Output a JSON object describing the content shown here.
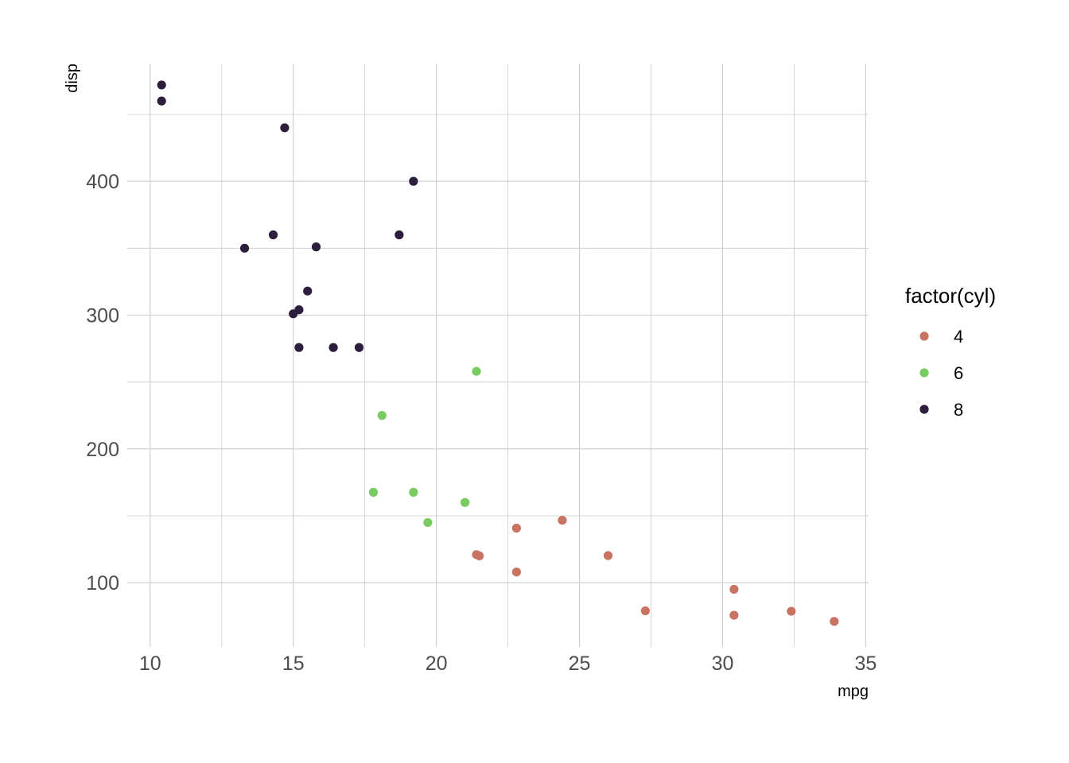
{
  "chart_data": {
    "type": "scatter",
    "title": "",
    "xlabel": "mpg",
    "ylabel": "disp",
    "xlim": [
      9.2,
      35.1
    ],
    "ylim": [
      52,
      488
    ],
    "x_ticks": [
      10,
      15,
      20,
      25,
      30,
      35
    ],
    "x_tick_labels": [
      "10",
      "15",
      "20",
      "25",
      "30",
      "35"
    ],
    "y_ticks": [
      100,
      200,
      300,
      400
    ],
    "y_tick_labels": [
      "100",
      "200",
      "300",
      "400"
    ],
    "grid": true,
    "legend": {
      "title": "factor(cyl)",
      "placement": "right",
      "entries": [
        "4",
        "6",
        "8"
      ]
    },
    "series": [
      {
        "name": "4",
        "color": "#c87462",
        "points": [
          {
            "x": 22.8,
            "y": 108
          },
          {
            "x": 24.4,
            "y": 146.7
          },
          {
            "x": 22.8,
            "y": 140.8
          },
          {
            "x": 32.4,
            "y": 78.7
          },
          {
            "x": 30.4,
            "y": 75.7
          },
          {
            "x": 33.9,
            "y": 71.1
          },
          {
            "x": 21.5,
            "y": 120.1
          },
          {
            "x": 27.3,
            "y": 79
          },
          {
            "x": 26.0,
            "y": 120.3
          },
          {
            "x": 30.4,
            "y": 95.1
          },
          {
            "x": 21.4,
            "y": 121
          }
        ]
      },
      {
        "name": "6",
        "color": "#7acc62",
        "points": [
          {
            "x": 21.0,
            "y": 160
          },
          {
            "x": 21.0,
            "y": 160
          },
          {
            "x": 21.4,
            "y": 258
          },
          {
            "x": 18.1,
            "y": 225
          },
          {
            "x": 19.2,
            "y": 167.6
          },
          {
            "x": 17.8,
            "y": 167.6
          },
          {
            "x": 19.7,
            "y": 145
          }
        ]
      },
      {
        "name": "8",
        "color": "#2d1e3e",
        "points": [
          {
            "x": 18.7,
            "y": 360
          },
          {
            "x": 14.3,
            "y": 360
          },
          {
            "x": 16.4,
            "y": 275.8
          },
          {
            "x": 17.3,
            "y": 275.8
          },
          {
            "x": 15.2,
            "y": 275.8
          },
          {
            "x": 10.4,
            "y": 472
          },
          {
            "x": 10.4,
            "y": 460
          },
          {
            "x": 14.7,
            "y": 440
          },
          {
            "x": 15.5,
            "y": 318
          },
          {
            "x": 15.2,
            "y": 304
          },
          {
            "x": 13.3,
            "y": 350
          },
          {
            "x": 19.2,
            "y": 400
          },
          {
            "x": 15.8,
            "y": 351
          },
          {
            "x": 15.0,
            "y": 301
          }
        ]
      }
    ]
  }
}
